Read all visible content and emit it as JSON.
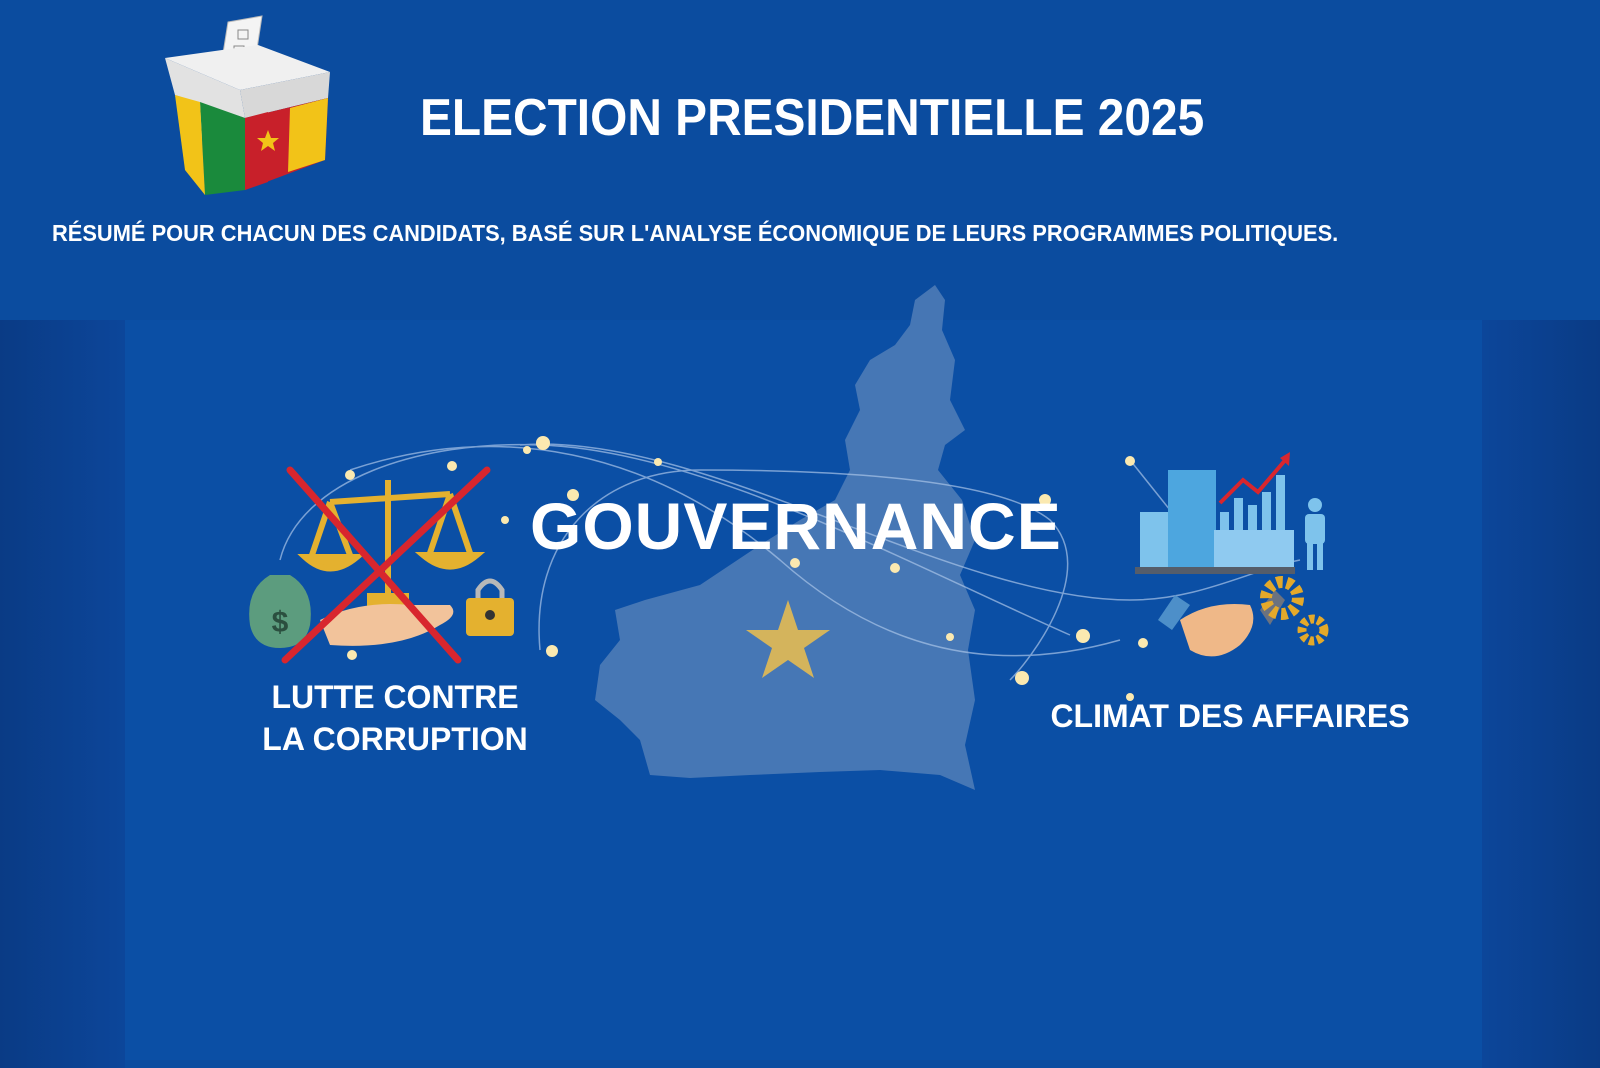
{
  "header": {
    "title": "ELECTION PRESIDENTIELLE 2025",
    "subtitle": "RÉSUMÉ POUR CHACUN DES CANDIDATS, BASÉ SUR L'ANALYSE ÉCONOMIQUE DE LEURS PROGRAMMES POLITIQUES."
  },
  "main": {
    "theme": "GOUVERNANCE",
    "left_topic": {
      "line1": "LUTTE CONTRE",
      "line2": "LA CORRUPTION"
    },
    "right_topic": "CLIMAT DES AFFAIRES"
  },
  "icons": [
    "ballot-box-icon",
    "cameroon-map-icon",
    "scales-of-justice-icon",
    "money-bag-icon",
    "padlock-icon",
    "buildings-icon",
    "bar-chart-icon",
    "businessman-icon",
    "handshake-icon",
    "gears-icon"
  ],
  "colors": {
    "background": "#0b4c9f",
    "flag_green": "#1a8a3c",
    "flag_red": "#c8202a",
    "flag_yellow": "#f2c318",
    "cross": "#d8262e",
    "map": "#5b84bb"
  }
}
